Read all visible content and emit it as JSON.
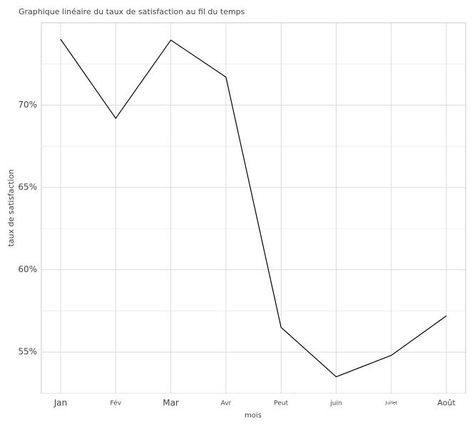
{
  "chart_data": {
    "type": "line",
    "title": "Graphique linéaire du taux de satisfaction au fil du temps",
    "x_label": "mois",
    "y_label": "taux de satisfaction",
    "categories": [
      "Jan",
      "Fév",
      "Mar",
      "Avr",
      "Peut",
      "juin",
      "Juillet",
      "Août"
    ],
    "values": [
      74.0,
      69.2,
      73.95,
      71.7,
      56.5,
      53.5,
      54.8,
      57.2
    ],
    "color": "#000000",
    "ylim": [
      52.5,
      75.0
    ],
    "yticks": [
      {
        "value": 55,
        "label": "55%"
      },
      {
        "value": 60,
        "label": "60%"
      },
      {
        "value": 65,
        "label": "65%"
      },
      {
        "value": 70,
        "label": "70%"
      }
    ],
    "grid": true
  }
}
